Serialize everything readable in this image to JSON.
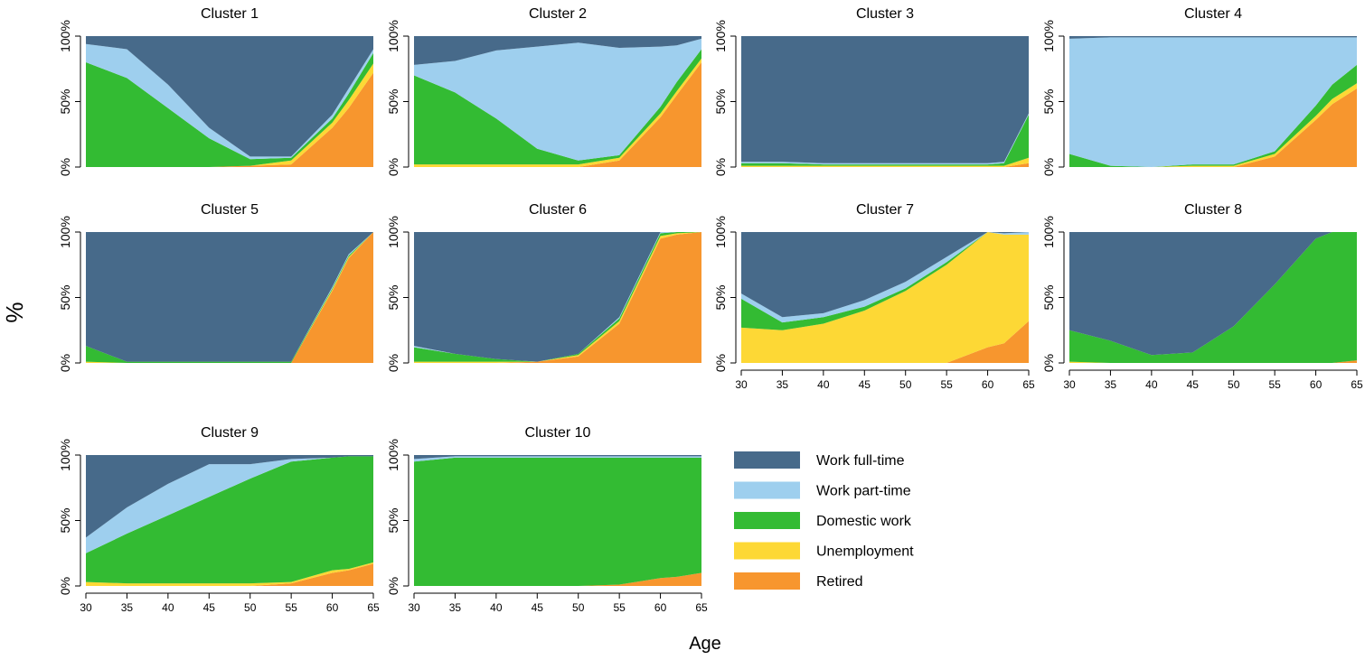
{
  "figure": {
    "ylabel": "%",
    "xlabel": "Age"
  },
  "states": [
    {
      "key": "retired",
      "name": "Retired",
      "color": "#F7962E"
    },
    {
      "key": "unemployment",
      "name": "Unemployment",
      "color": "#FDD835"
    },
    {
      "key": "domestic",
      "name": "Domestic work",
      "color": "#33BB33"
    },
    {
      "key": "parttime",
      "name": "Work part-time",
      "color": "#9ECFEE"
    },
    {
      "key": "fulltime",
      "name": "Work full-time",
      "color": "#476A8A"
    }
  ],
  "chart_data": {
    "type": "area",
    "stacked": true,
    "x": [
      30,
      35,
      40,
      45,
      50,
      55,
      60,
      62,
      65
    ],
    "x_ticks": [
      "30",
      "35",
      "40",
      "45",
      "50",
      "55",
      "60",
      "65"
    ],
    "y_ticks": [
      "0%",
      "50%",
      "100%"
    ],
    "ylim": [
      0,
      100
    ],
    "xlim": [
      30,
      65
    ],
    "grid": false,
    "legend_position": "bottom-right",
    "panels": [
      {
        "title": "Cluster 1",
        "series": [
          {
            "name": "Retired",
            "values": [
              0,
              0,
              0,
              0,
              1,
              2,
              30,
              45,
              72
            ]
          },
          {
            "name": "Unemployment",
            "values": [
              0,
              0,
              0,
              0,
              0,
              3,
              4,
              6,
              7
            ]
          },
          {
            "name": "Domestic work",
            "values": [
              80,
              68,
              45,
              22,
              5,
              2,
              3,
              5,
              8
            ]
          },
          {
            "name": "Work part-time",
            "values": [
              14,
              22,
              18,
              8,
              2,
              1,
              3,
              4,
              3
            ]
          },
          {
            "name": "Work full-time",
            "values": [
              6,
              10,
              37,
              70,
              92,
              92,
              60,
              40,
              10
            ]
          }
        ]
      },
      {
        "title": "Cluster 2",
        "series": [
          {
            "name": "Retired",
            "values": [
              0,
              0,
              0,
              0,
              0,
              5,
              38,
              55,
              80
            ]
          },
          {
            "name": "Unemployment",
            "values": [
              2,
              2,
              2,
              2,
              2,
              2,
              3,
              3,
              3
            ]
          },
          {
            "name": "Domestic work",
            "values": [
              68,
              55,
              35,
              12,
              3,
              2,
              5,
              7,
              7
            ]
          },
          {
            "name": "Work part-time",
            "values": [
              8,
              24,
              52,
              78,
              90,
              82,
              46,
              28,
              8
            ]
          },
          {
            "name": "Work full-time",
            "values": [
              22,
              19,
              11,
              8,
              5,
              9,
              8,
              7,
              2
            ]
          }
        ]
      },
      {
        "title": "Cluster 3",
        "series": [
          {
            "name": "Retired",
            "values": [
              0,
              0,
              0,
              0,
              0,
              0,
              0,
              0,
              3
            ]
          },
          {
            "name": "Unemployment",
            "values": [
              1,
              1,
              1,
              1,
              1,
              1,
              1,
              1,
              4
            ]
          },
          {
            "name": "Domestic work",
            "values": [
              2,
              2,
              1,
              1,
              1,
              1,
              1,
              2,
              33
            ]
          },
          {
            "name": "Work part-time",
            "values": [
              1,
              1,
              1,
              1,
              1,
              1,
              1,
              1,
              1
            ]
          },
          {
            "name": "Work full-time",
            "values": [
              96,
              96,
              97,
              97,
              97,
              97,
              97,
              96,
              59
            ]
          }
        ]
      },
      {
        "title": "Cluster 4",
        "series": [
          {
            "name": "Retired",
            "values": [
              0,
              0,
              0,
              0,
              0,
              8,
              36,
              48,
              60
            ]
          },
          {
            "name": "Unemployment",
            "values": [
              0,
              0,
              0,
              1,
              1,
              2,
              3,
              4,
              4
            ]
          },
          {
            "name": "Domestic work",
            "values": [
              10,
              1,
              0,
              1,
              1,
              2,
              8,
              11,
              14
            ]
          },
          {
            "name": "Work part-time",
            "values": [
              88,
              98,
              99,
              97,
              97,
              87,
              52,
              36,
              21
            ]
          },
          {
            "name": "Work full-time",
            "values": [
              2,
              1,
              1,
              1,
              1,
              1,
              1,
              1,
              1
            ]
          }
        ]
      },
      {
        "title": "Cluster 5",
        "series": [
          {
            "name": "Retired",
            "values": [
              0,
              0,
              0,
              0,
              0,
              0,
              55,
              80,
              100
            ]
          },
          {
            "name": "Unemployment",
            "values": [
              1,
              0,
              0,
              0,
              0,
              0,
              1,
              1,
              0
            ]
          },
          {
            "name": "Domestic work",
            "values": [
              12,
              1,
              1,
              1,
              1,
              1,
              1,
              1,
              0
            ]
          },
          {
            "name": "Work part-time",
            "values": [
              0,
              0,
              0,
              0,
              0,
              0,
              1,
              1,
              0
            ]
          },
          {
            "name": "Work full-time",
            "values": [
              87,
              99,
              99,
              99,
              99,
              99,
              42,
              17,
              0
            ]
          }
        ]
      },
      {
        "title": "Cluster 6",
        "series": [
          {
            "name": "Retired",
            "values": [
              0,
              0,
              0,
              1,
              5,
              30,
              95,
              98,
              100
            ]
          },
          {
            "name": "Unemployment",
            "values": [
              1,
              1,
              1,
              0,
              1,
              2,
              2,
              1,
              0
            ]
          },
          {
            "name": "Domestic work",
            "values": [
              11,
              6,
              2,
              0,
              1,
              2,
              2,
              1,
              0
            ]
          },
          {
            "name": "Work part-time",
            "values": [
              1,
              0,
              0,
              0,
              0,
              1,
              1,
              0,
              0
            ]
          },
          {
            "name": "Work full-time",
            "values": [
              87,
              93,
              97,
              99,
              93,
              65,
              0,
              0,
              0
            ]
          }
        ]
      },
      {
        "title": "Cluster 7",
        "series": [
          {
            "name": "Retired",
            "values": [
              0,
              0,
              0,
              0,
              0,
              0,
              12,
              15,
              32
            ]
          },
          {
            "name": "Unemployment",
            "values": [
              27,
              25,
              30,
              40,
              55,
              75,
              88,
              83,
              66
            ]
          },
          {
            "name": "Domestic work",
            "values": [
              22,
              6,
              5,
              3,
              2,
              2,
              0,
              0,
              0
            ]
          },
          {
            "name": "Work part-time",
            "values": [
              4,
              4,
              3,
              5,
              5,
              4,
              0,
              1,
              2
            ]
          },
          {
            "name": "Work full-time",
            "values": [
              47,
              65,
              62,
              52,
              38,
              19,
              0,
              1,
              0
            ]
          }
        ]
      },
      {
        "title": "Cluster 8",
        "series": [
          {
            "name": "Retired",
            "values": [
              0,
              0,
              0,
              0,
              0,
              0,
              0,
              0,
              2
            ]
          },
          {
            "name": "Unemployment",
            "values": [
              1,
              0,
              0,
              0,
              0,
              0,
              0,
              0,
              0
            ]
          },
          {
            "name": "Domestic work",
            "values": [
              24,
              17,
              6,
              8,
              28,
              60,
              95,
              100,
              98
            ]
          },
          {
            "name": "Work part-time",
            "values": [
              0,
              0,
              0,
              0,
              0,
              0,
              0,
              0,
              0
            ]
          },
          {
            "name": "Work full-time",
            "values": [
              75,
              83,
              94,
              92,
              72,
              40,
              5,
              0,
              0
            ]
          }
        ]
      },
      {
        "title": "Cluster 9",
        "series": [
          {
            "name": "Retired",
            "values": [
              0,
              0,
              0,
              0,
              0,
              2,
              10,
              12,
              17
            ]
          },
          {
            "name": "Unemployment",
            "values": [
              3,
              2,
              2,
              2,
              2,
              1,
              2,
              1,
              1
            ]
          },
          {
            "name": "Domestic work",
            "values": [
              22,
              38,
              52,
              66,
              80,
              92,
              86,
              86,
              81
            ]
          },
          {
            "name": "Work part-time",
            "values": [
              12,
              20,
              24,
              25,
              11,
              2,
              0,
              0,
              0
            ]
          },
          {
            "name": "Work full-time",
            "values": [
              63,
              40,
              22,
              7,
              7,
              3,
              2,
              1,
              1
            ]
          }
        ]
      },
      {
        "title": "Cluster 10",
        "series": [
          {
            "name": "Retired",
            "values": [
              0,
              0,
              0,
              0,
              0,
              1,
              6,
              7,
              10
            ]
          },
          {
            "name": "Unemployment",
            "values": [
              0,
              0,
              0,
              0,
              0,
              0,
              0,
              0,
              0
            ]
          },
          {
            "name": "Domestic work",
            "values": [
              95,
              98,
              98,
              98,
              98,
              97,
              92,
              91,
              88
            ]
          },
          {
            "name": "Work part-time",
            "values": [
              2,
              1,
              1,
              1,
              1,
              1,
              1,
              1,
              1
            ]
          },
          {
            "name": "Work full-time",
            "values": [
              3,
              1,
              1,
              1,
              1,
              1,
              1,
              1,
              1
            ]
          }
        ]
      }
    ],
    "legend": [
      "Work full-time",
      "Work part-time",
      "Domestic work",
      "Unemployment",
      "Retired"
    ]
  }
}
